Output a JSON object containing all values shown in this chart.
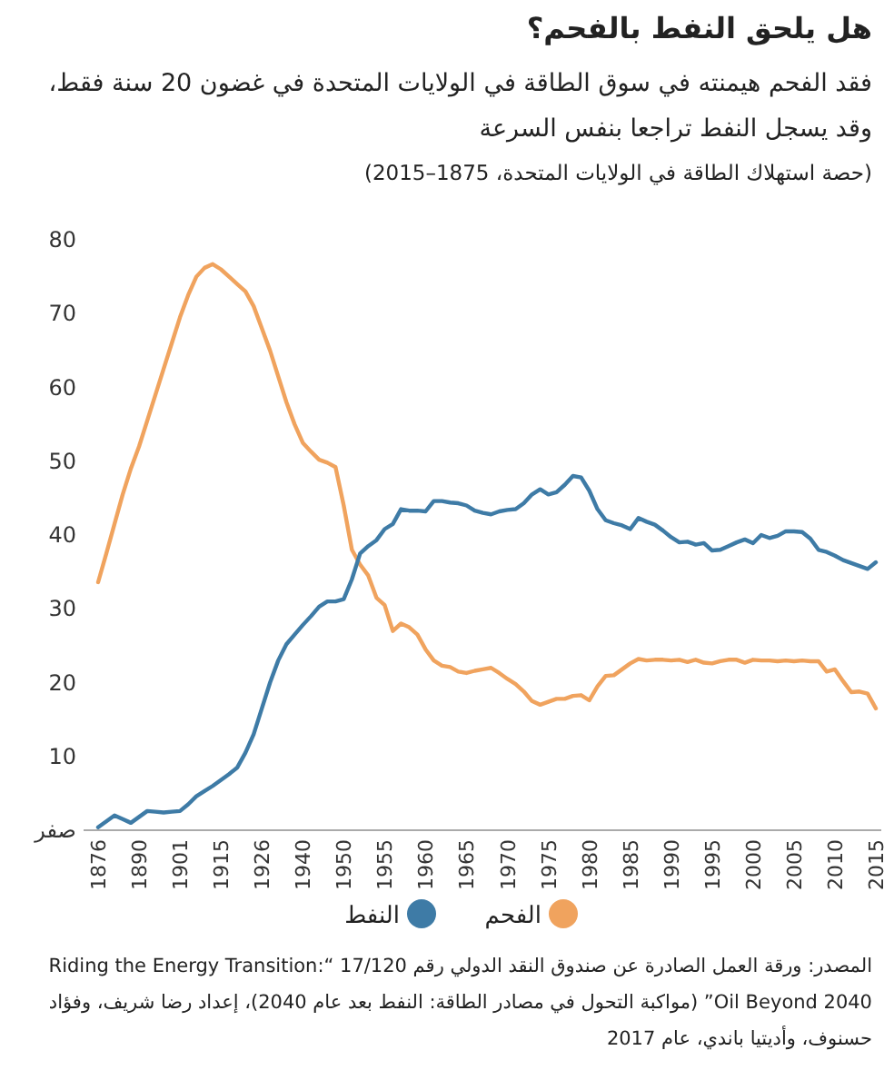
{
  "chart_data": {
    "type": "line",
    "title": "هل يلحق النفط بالفحم؟",
    "subtitle": "فقد الفحم هيمنته في سوق الطاقة في الولايات المتحدة في غضون 20 سنة فقط، وقد يسجل النفط تراجعا بنفس السرعة",
    "ylabel": "(حصة استهلاك الطاقة في الولايات المتحدة، 1875–2015)",
    "categories": [
      "1876",
      null,
      null,
      null,
      null,
      "1890",
      null,
      null,
      null,
      null,
      "1901",
      null,
      null,
      null,
      null,
      "1915",
      null,
      null,
      null,
      null,
      "1926",
      null,
      null,
      null,
      null,
      "1940",
      null,
      null,
      null,
      null,
      "1950",
      null,
      null,
      null,
      null,
      "1955",
      null,
      null,
      null,
      null,
      "1960",
      null,
      null,
      null,
      null,
      "1965",
      null,
      null,
      null,
      null,
      "1970",
      null,
      null,
      null,
      null,
      "1975",
      null,
      null,
      null,
      null,
      "1980",
      null,
      null,
      null,
      null,
      "1985",
      null,
      null,
      null,
      null,
      "1990",
      null,
      null,
      null,
      null,
      "1995",
      null,
      null,
      null,
      null,
      "2000",
      null,
      null,
      null,
      null,
      "2005",
      null,
      null,
      null,
      null,
      "2010",
      null,
      null,
      null,
      null,
      "2015"
    ],
    "series": [
      {
        "name": "الفحم",
        "color": "#f0a35e",
        "values": [
          33.6,
          37.5,
          41.5,
          45.5,
          49,
          52,
          55.5,
          59,
          62.5,
          66,
          69.5,
          72.5,
          75,
          76.2,
          76.7,
          76,
          75,
          74,
          73,
          71,
          68,
          65,
          61.5,
          58,
          55,
          52.5,
          51.3,
          50.2,
          49.8,
          49.2,
          44,
          38,
          36,
          34.5,
          31.5,
          30.5,
          27,
          28,
          27.5,
          26.5,
          24.5,
          23,
          22.3,
          22.1,
          21.5,
          21.3,
          21.6,
          21.8,
          22,
          21.3,
          20.5,
          19.8,
          18.8,
          17.5,
          17,
          17.4,
          17.8,
          17.8,
          18.2,
          18.3,
          17.6,
          19.5,
          20.9,
          21,
          21.8,
          22.6,
          23.2,
          23,
          23.1,
          23.1,
          23,
          23.1,
          22.8,
          23.1,
          22.7,
          22.6,
          22.9,
          23.1,
          23.1,
          22.7,
          23.1,
          23,
          23,
          22.9,
          23,
          22.9,
          23,
          22.9,
          22.9,
          21.5,
          21.8,
          20.2,
          18.7,
          18.8,
          18.5,
          16.5
        ]
      },
      {
        "name": "النفط",
        "color": "#3e7ba6",
        "values": [
          0.4,
          1.2,
          2,
          1.5,
          1,
          1.8,
          2.6,
          2.5,
          2.4,
          2.5,
          2.6,
          3.5,
          4.6,
          5.3,
          6,
          6.8,
          7.6,
          8.5,
          10.5,
          13,
          16.5,
          20,
          23,
          25.2,
          26.5,
          27.8,
          29,
          30.3,
          31,
          31,
          31.3,
          34,
          37.5,
          38.5,
          39.3,
          40.8,
          41.5,
          43.5,
          43.3,
          43.3,
          43.2,
          44.6,
          44.6,
          44.4,
          44.3,
          44,
          43.3,
          43,
          42.8,
          43.2,
          43.4,
          43.5,
          44.3,
          45.5,
          46.2,
          45.5,
          45.8,
          46.8,
          48,
          47.8,
          46,
          43.5,
          42,
          41.6,
          41.3,
          40.8,
          42.3,
          41.8,
          41.4,
          40.6,
          39.7,
          39,
          39.1,
          38.7,
          38.9,
          37.9,
          38,
          38.5,
          39,
          39.4,
          38.9,
          40,
          39.6,
          39.9,
          40.5,
          40.5,
          40.4,
          39.5,
          38,
          37.7,
          37.2,
          36.6,
          36.2,
          35.8,
          35.4,
          36.3
        ]
      }
    ],
    "ylim": [
      0,
      80
    ],
    "yticks": [
      {
        "value": 0,
        "label": "صفر"
      },
      10,
      20,
      30,
      40,
      50,
      60,
      70,
      80
    ],
    "legend": "bottom",
    "annotations": [
      "المصدر: ورقة العمل الصادرة عن صندوق النقد الدولي رقم 17/120 “Riding the Energy Transition: Oil Beyond 2040” (مواكبة التحول في مصادر الطاقة: النفط بعد عام 2040)، إعداد رضا شريف، وفؤاد حسنوف، وأديتيا باندي، عام 2017"
    ]
  }
}
